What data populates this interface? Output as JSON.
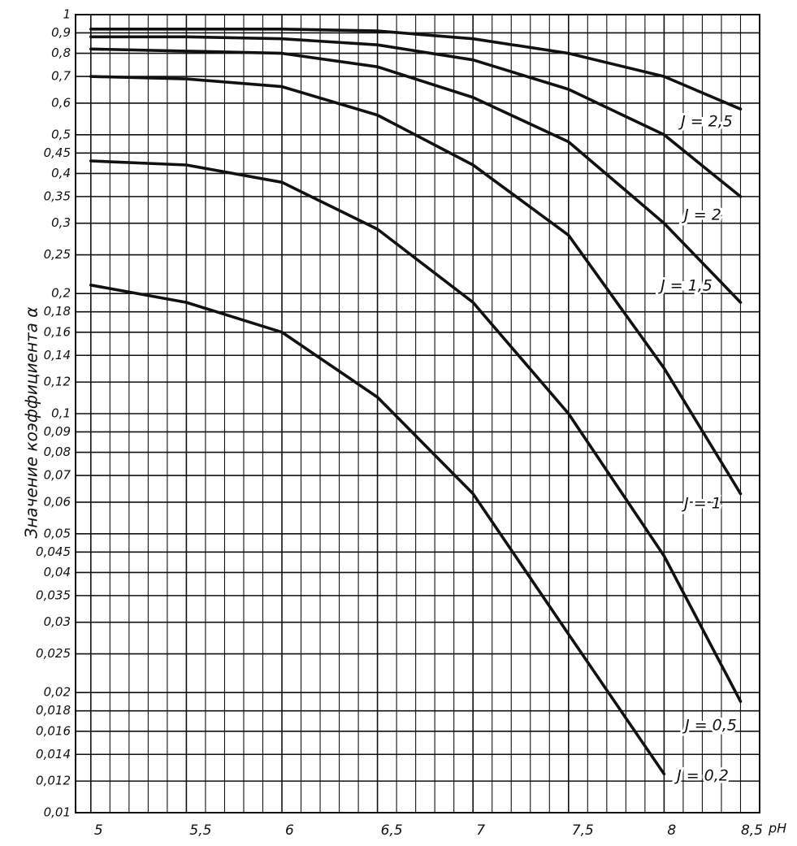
{
  "chart_data": {
    "type": "line",
    "y_label": "Значение коэффициента α",
    "x_label": "pH",
    "log_y": true,
    "grid": true,
    "x": [
      5,
      5.5,
      6,
      6.5,
      7,
      7.5,
      8,
      8.4
    ],
    "xlim": [
      4.92,
      8.5
    ],
    "xticks": [
      5,
      {
        "value": 5.5,
        "label": "5,5"
      },
      6,
      {
        "value": 6.5,
        "label": "6,5"
      },
      7,
      {
        "value": 7.5,
        "label": "7,5"
      },
      8,
      {
        "value": 8.5,
        "label": "8,5"
      }
    ],
    "ylim": [
      0.01,
      1
    ],
    "yticks": [
      1,
      {
        "value": 0.9,
        "label": "0,9"
      },
      {
        "value": 0.8,
        "label": "0,8"
      },
      {
        "value": 0.7,
        "label": "0,7"
      },
      {
        "value": 0.6,
        "label": "0,6"
      },
      {
        "value": 0.5,
        "label": "0,5"
      },
      {
        "value": 0.45,
        "label": "0,45"
      },
      {
        "value": 0.4,
        "label": "0,4"
      },
      {
        "value": 0.35,
        "label": "0,35"
      },
      {
        "value": 0.3,
        "label": "0,3"
      },
      {
        "value": 0.25,
        "label": "0,25"
      },
      {
        "value": 0.2,
        "label": "0,2"
      },
      {
        "value": 0.18,
        "label": "0,18"
      },
      {
        "value": 0.16,
        "label": "0,16"
      },
      {
        "value": 0.14,
        "label": "0,14"
      },
      {
        "value": 0.12,
        "label": "0,12"
      },
      {
        "value": 0.1,
        "label": "0,1"
      },
      {
        "value": 0.09,
        "label": "0,09"
      },
      {
        "value": 0.08,
        "label": "0,08"
      },
      {
        "value": 0.07,
        "label": "0,07"
      },
      {
        "value": 0.06,
        "label": "0,06"
      },
      {
        "value": 0.05,
        "label": "0,05"
      },
      {
        "value": 0.045,
        "label": "0,045"
      },
      {
        "value": 0.04,
        "label": "0,04"
      },
      {
        "value": 0.035,
        "label": "0,035"
      },
      {
        "value": 0.03,
        "label": "0,03"
      },
      {
        "value": 0.025,
        "label": "0,025"
      },
      {
        "value": 0.02,
        "label": "0,02"
      },
      {
        "value": 0.018,
        "label": "0,018"
      },
      {
        "value": 0.016,
        "label": "0,016"
      },
      {
        "value": 0.014,
        "label": "0,014"
      },
      {
        "value": 0.012,
        "label": "0,012"
      },
      {
        "value": 0.01,
        "label": "0,01"
      }
    ],
    "series": [
      {
        "name": "J = 2,5",
        "color": "#111111",
        "values": [
          0.92,
          0.92,
          0.92,
          0.91,
          0.87,
          0.8,
          0.7,
          0.58
        ]
      },
      {
        "name": "J = 2",
        "color": "#111111",
        "values": [
          0.88,
          0.88,
          0.87,
          0.84,
          0.77,
          0.65,
          0.5,
          0.35
        ]
      },
      {
        "name": "J = 1,5",
        "color": "#111111",
        "values": [
          0.82,
          0.81,
          0.8,
          0.74,
          0.62,
          0.48,
          0.3,
          0.19
        ]
      },
      {
        "name": "J = 1",
        "color": "#111111",
        "values": [
          0.7,
          0.69,
          0.66,
          0.56,
          0.42,
          0.28,
          0.13,
          0.063
        ]
      },
      {
        "name": "J = 0,5",
        "color": "#111111",
        "values": [
          0.43,
          0.42,
          0.38,
          0.29,
          0.19,
          0.1,
          0.044,
          0.019
        ]
      },
      {
        "name": "J = 0,2",
        "color": "#111111",
        "values": [
          0.21,
          0.19,
          0.16,
          0.11,
          0.063,
          0.028,
          0.0125,
          null
        ]
      }
    ]
  }
}
